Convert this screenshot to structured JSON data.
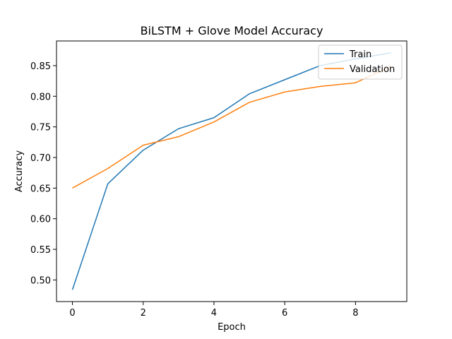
{
  "chart_data": {
    "type": "line",
    "title": "BiLSTM + Glove Model Accuracy",
    "xlabel": "Epoch",
    "ylabel": "Accuracy",
    "x": [
      0,
      1,
      2,
      3,
      4,
      5,
      6,
      7,
      8,
      9
    ],
    "series": [
      {
        "name": "Train",
        "color": "#1f77b4",
        "values": [
          0.484,
          0.657,
          0.712,
          0.747,
          0.765,
          0.804,
          0.827,
          0.85,
          0.861,
          0.871
        ]
      },
      {
        "name": "Validation",
        "color": "#ff7f0e",
        "values": [
          0.65,
          0.682,
          0.72,
          0.734,
          0.758,
          0.79,
          0.807,
          0.816,
          0.822,
          0.849
        ]
      }
    ],
    "xlim": [
      -0.45,
      9.45
    ],
    "ylim": [
      0.4647,
      0.8903
    ],
    "xticks": [
      0,
      2,
      4,
      6,
      8
    ],
    "yticks": [
      0.5,
      0.55,
      0.6,
      0.65,
      0.7,
      0.75,
      0.8,
      0.85
    ],
    "ytick_labels": [
      "0.50",
      "0.55",
      "0.60",
      "0.65",
      "0.70",
      "0.75",
      "0.80",
      "0.85"
    ],
    "grid": false,
    "legend_position": "top-right"
  }
}
